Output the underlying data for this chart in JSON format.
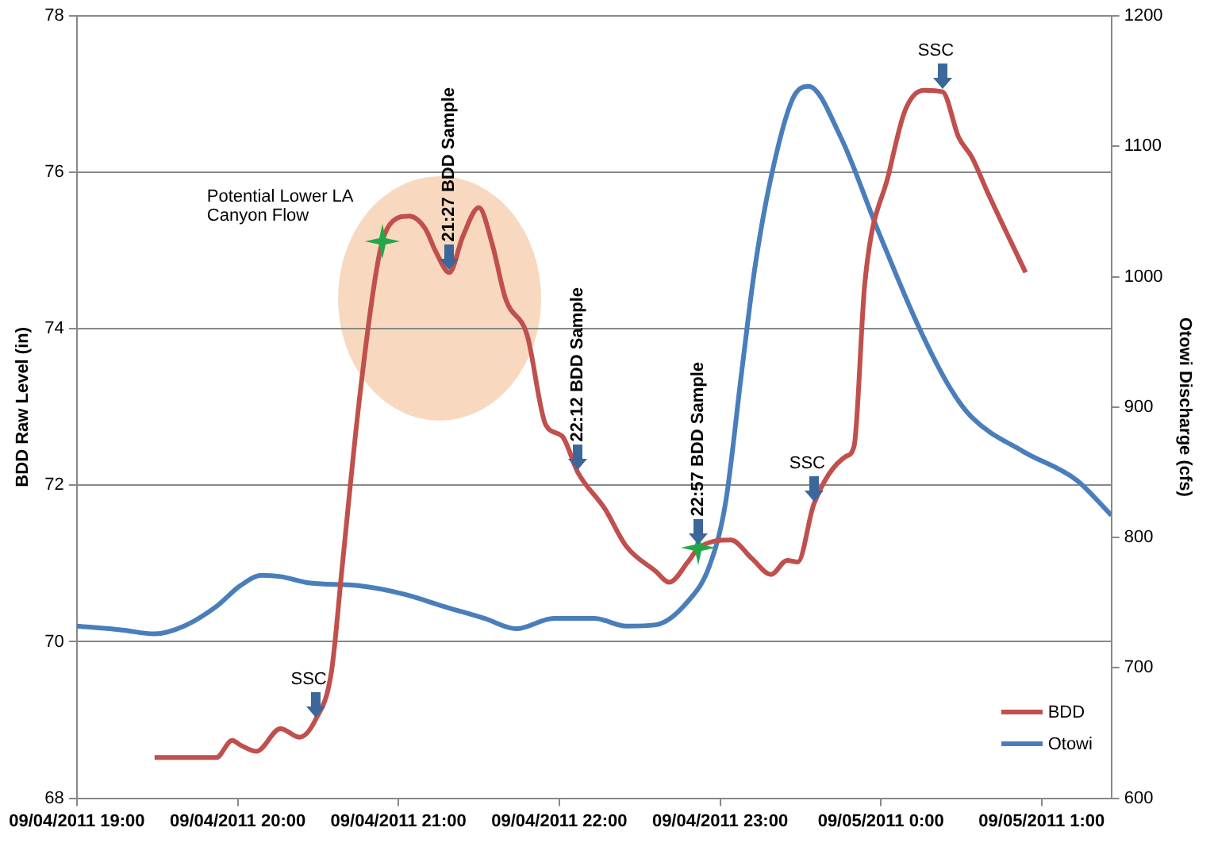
{
  "chart_data": {
    "type": "line",
    "ylabel": "BDD Raw Level (in)",
    "y2label": "Otowi Discharge (cfs)",
    "xlim": [
      "2011-09-04T19:00",
      "2011-09-05T01:26"
    ],
    "xticks": [
      {
        "value": "2011-09-04T19:00",
        "label": "09/04/2011 19:00"
      },
      {
        "value": "2011-09-04T20:00",
        "label": "09/04/2011 20:00"
      },
      {
        "value": "2011-09-04T21:00",
        "label": "09/04/2011 21:00"
      },
      {
        "value": "2011-09-04T22:00",
        "label": "09/04/2011 22:00"
      },
      {
        "value": "2011-09-04T23:00",
        "label": "09/04/2011 23:00"
      },
      {
        "value": "2011-09-05T00:00",
        "label": "09/05/2011 0:00"
      },
      {
        "value": "2011-09-05T01:00",
        "label": "09/05/2011 1:00"
      }
    ],
    "ylim": [
      68,
      78
    ],
    "yticks": [
      68,
      70,
      72,
      74,
      76,
      78
    ],
    "y2lim": [
      600,
      1200
    ],
    "y2ticks": [
      600,
      700,
      800,
      900,
      1000,
      1100,
      1200
    ],
    "series": [
      {
        "name": "BDD",
        "color": "#c0504d",
        "x": [
          "2011-09-04T19:29",
          "2011-09-04T19:52",
          "2011-09-04T19:58",
          "2011-09-04T20:01",
          "2011-09-04T20:07",
          "2011-09-04T20:16",
          "2011-09-04T20:23",
          "2011-09-04T20:29",
          "2011-09-04T20:35",
          "2011-09-04T20:39",
          "2011-09-04T20:45",
          "2011-09-04T20:51",
          "2011-09-04T20:54",
          "2011-09-04T20:58",
          "2011-09-04T21:04",
          "2011-09-04T21:10",
          "2011-09-04T21:14",
          "2011-09-04T21:19",
          "2011-09-04T21:24",
          "2011-09-04T21:30",
          "2011-09-04T21:35",
          "2011-09-04T21:40",
          "2011-09-04T21:48",
          "2011-09-04T21:55",
          "2011-09-04T22:01",
          "2011-09-04T22:07",
          "2011-09-04T22:17",
          "2011-09-04T22:25",
          "2011-09-04T22:36",
          "2011-09-04T22:41",
          "2011-09-04T22:48",
          "2011-09-04T22:52",
          "2011-09-04T23:04",
          "2011-09-04T23:12",
          "2011-09-04T23:19",
          "2011-09-04T23:25",
          "2011-09-04T23:29",
          "2011-09-04T23:35",
          "2011-09-04T23:47",
          "2011-09-04T23:50",
          "2011-09-04T23:54",
          "2011-09-05T00:03",
          "2011-09-05T00:09",
          "2011-09-05T00:16",
          "2011-09-05T00:23",
          "2011-09-05T00:29",
          "2011-09-05T00:34",
          "2011-09-05T00:40",
          "2011-09-05T00:54"
        ],
        "values": [
          68.52,
          68.52,
          68.74,
          68.68,
          68.6,
          68.89,
          68.78,
          69.0,
          69.62,
          70.96,
          72.97,
          74.58,
          75.12,
          75.38,
          75.44,
          75.28,
          74.98,
          74.72,
          75.18,
          75.55,
          75.08,
          74.38,
          73.92,
          72.77,
          72.63,
          72.16,
          71.7,
          71.22,
          70.9,
          70.76,
          71.02,
          71.2,
          71.3,
          71.06,
          70.86,
          71.04,
          71.02,
          71.76,
          72.37,
          72.5,
          74.58,
          75.99,
          76.79,
          77.05,
          77.03,
          76.45,
          76.19,
          75.73,
          74.72
        ]
      },
      {
        "name": "Otowi",
        "color": "#4a7ebb",
        "axis": "y2",
        "x": [
          "2011-09-04T19:00",
          "2011-09-04T19:17",
          "2011-09-04T19:29",
          "2011-09-04T19:40",
          "2011-09-04T19:52",
          "2011-09-04T20:01",
          "2011-09-04T20:09",
          "2011-09-04T20:16",
          "2011-09-04T20:27",
          "2011-09-04T20:45",
          "2011-09-04T21:03",
          "2011-09-04T21:17",
          "2011-09-04T21:32",
          "2011-09-04T21:44",
          "2011-09-04T21:58",
          "2011-09-04T22:13",
          "2011-09-04T22:25",
          "2011-09-04T22:36",
          "2011-09-04T22:48",
          "2011-09-04T22:56",
          "2011-09-04T23:02",
          "2011-09-04T23:08",
          "2011-09-04T23:13",
          "2011-09-04T23:19",
          "2011-09-04T23:27",
          "2011-09-04T23:33",
          "2011-09-04T23:45",
          "2011-09-04T23:59",
          "2011-09-05T00:14",
          "2011-09-05T00:26",
          "2011-09-05T00:34",
          "2011-09-05T00:53",
          "2011-09-05T01:13",
          "2011-09-05T01:26"
        ],
        "values": [
          732,
          729,
          726,
          732,
          747,
          763,
          771,
          770,
          765,
          763,
          756,
          747,
          738,
          730,
          738,
          738,
          732,
          733,
          751,
          778,
          826,
          926,
          1007,
          1076,
          1136,
          1146,
          1107,
          1035,
          962,
          914,
          892,
          866,
          844,
          817
        ]
      }
    ],
    "annotations": [
      {
        "text": "SSC",
        "x": "2011-09-04T20:29",
        "y": 69.0
      },
      {
        "text": "21:27 BDD Sample",
        "x": "2011-09-04T21:19",
        "y": 74.72
      },
      {
        "text": "22:12 BDD Sample",
        "x": "2011-09-04T22:07",
        "y": 72.16
      },
      {
        "text": "22:57 BDD Sample",
        "x": "2011-09-04T22:52",
        "y": 71.2
      },
      {
        "text": "SSC",
        "x": "2011-09-04T23:35",
        "y": 71.76
      },
      {
        "text": "SSC",
        "x": "2011-09-05T00:23",
        "y": 77.03
      },
      "Potential Lower LA Canyon Flow"
    ],
    "grid": "y",
    "legend": "bottom right"
  }
}
